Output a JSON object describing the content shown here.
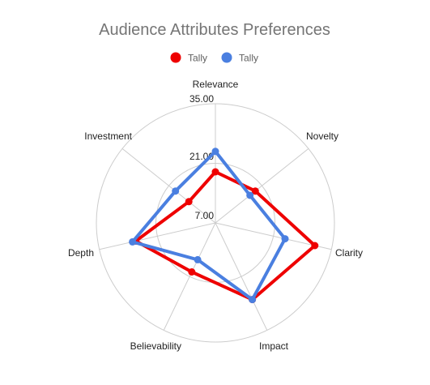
{
  "chart_data": {
    "type": "radar",
    "title": "Audience Attributes Preferences",
    "axes": [
      "Relevance",
      "Novelty",
      "Clarity",
      "Impact",
      "Believability",
      "Depth",
      "Investment"
    ],
    "tick_labels": [
      "7.00",
      "21.00",
      "35.00"
    ],
    "range": [
      0,
      35
    ],
    "grid": true,
    "legend_position": "top",
    "series": [
      {
        "name": "Tally",
        "color": "#ee0000",
        "values": [
          15,
          15,
          30,
          25,
          16,
          24,
          10
        ]
      },
      {
        "name": "Tally",
        "color": "#4a7fe0",
        "values": [
          21,
          13,
          21,
          25,
          12,
          25,
          15
        ]
      }
    ]
  }
}
